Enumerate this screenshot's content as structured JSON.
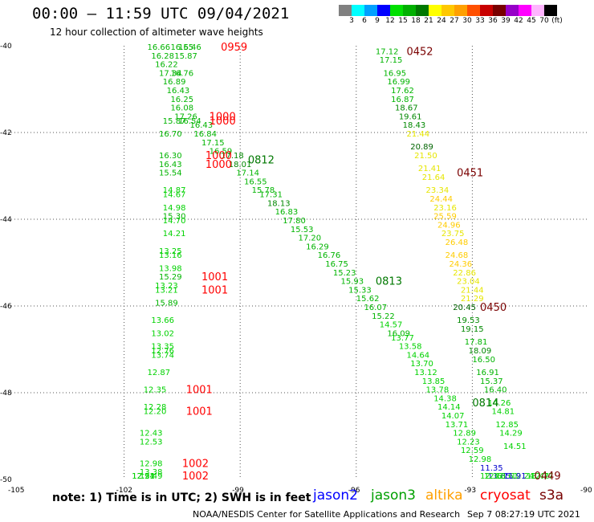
{
  "header": {
    "title": "00:00 – 11:59 UTC 09/04/2021",
    "subtitle": "12 hour collection of altimeter wave heights"
  },
  "legend": {
    "colors": [
      "#808080",
      "#00ffff",
      "#00a0ff",
      "#0000ff",
      "#00e000",
      "#00b000",
      "#007800",
      "#ffff00",
      "#ffc800",
      "#ffa000",
      "#ff5000",
      "#c80000",
      "#780000",
      "#9600c8",
      "#ff00ff",
      "#ffb4ff",
      "#000000"
    ],
    "ticks": [
      "3",
      "6",
      "9",
      "12",
      "15",
      "18",
      "21",
      "24",
      "27",
      "30",
      "33",
      "36",
      "39",
      "42",
      "45",
      "70",
      "(ft)"
    ]
  },
  "map": {
    "lon_range": [
      -105,
      -90
    ],
    "lat_range": [
      -50,
      -40
    ],
    "lon_ticks": [
      "-105",
      "-102",
      "-99",
      "-96",
      "-93",
      "-90"
    ],
    "lat_ticks": [
      "-40",
      "-42",
      "-44",
      "-46",
      "-48",
      "-50"
    ],
    "grid": "dotted"
  },
  "colors": {
    "c12": "#00d200",
    "c15": "#00b400",
    "c18": "#008800",
    "c21": "#006400",
    "c24": "#e6e600",
    "c27": "#ffcc00",
    "c_blue": "#0000cc",
    "time_red": "#ff0000",
    "time_dark": "#7a0000",
    "time_green": "#007800"
  },
  "chart_data": {
    "type": "scatter",
    "x_unit": "longitude",
    "y_unit": "latitude",
    "points": [
      {
        "lon": -101.4,
        "lat": -40.0,
        "v": "16.66",
        "c": "c15"
      },
      {
        "lon": -100.8,
        "lat": -40.0,
        "v": "16.55",
        "c": "c15"
      },
      {
        "lon": -100.6,
        "lat": -40.0,
        "v": "16.46",
        "c": "c15"
      },
      {
        "lon": -101.3,
        "lat": -40.2,
        "v": "16.28",
        "c": "c15"
      },
      {
        "lon": -100.7,
        "lat": -40.2,
        "v": "15.87",
        "c": "c15"
      },
      {
        "lon": -101.2,
        "lat": -40.4,
        "v": "16.22",
        "c": "c15"
      },
      {
        "lon": -101.1,
        "lat": -40.6,
        "v": "17.34",
        "c": "c15"
      },
      {
        "lon": -100.8,
        "lat": -40.6,
        "v": "16.76",
        "c": "c15"
      },
      {
        "lon": -101.0,
        "lat": -40.8,
        "v": "16.89",
        "c": "c15"
      },
      {
        "lon": -100.9,
        "lat": -41.0,
        "v": "16.43",
        "c": "c15"
      },
      {
        "lon": -100.8,
        "lat": -41.2,
        "v": "16.25",
        "c": "c15"
      },
      {
        "lon": -100.8,
        "lat": -41.4,
        "v": "16.08",
        "c": "c15"
      },
      {
        "lon": -100.7,
        "lat": -41.6,
        "v": "17.26",
        "c": "c15"
      },
      {
        "lon": -101.0,
        "lat": -41.7,
        "v": "15.87",
        "c": "c15"
      },
      {
        "lon": -100.6,
        "lat": -41.7,
        "v": "16.54",
        "c": "c15"
      },
      {
        "lon": -100.3,
        "lat": -41.8,
        "v": "16.43",
        "c": "c15"
      },
      {
        "lon": -101.1,
        "lat": -42.0,
        "v": "16.70",
        "c": "c15"
      },
      {
        "lon": -100.2,
        "lat": -42.0,
        "v": "16.84",
        "c": "c15"
      },
      {
        "lon": -100.0,
        "lat": -42.2,
        "v": "17.15",
        "c": "c15"
      },
      {
        "lon": -99.8,
        "lat": -42.4,
        "v": "16.59",
        "c": "c15"
      },
      {
        "lon": -101.1,
        "lat": -42.5,
        "v": "16.30",
        "c": "c15"
      },
      {
        "lon": -99.5,
        "lat": -42.5,
        "v": "17.18",
        "c": "c18"
      },
      {
        "lon": -101.1,
        "lat": -42.7,
        "v": "16.43",
        "c": "c15"
      },
      {
        "lon": -99.3,
        "lat": -42.7,
        "v": "18.01",
        "c": "c18"
      },
      {
        "lon": -101.1,
        "lat": -42.9,
        "v": "15.54",
        "c": "c15"
      },
      {
        "lon": -99.1,
        "lat": -42.9,
        "v": "17.14",
        "c": "c15"
      },
      {
        "lon": -98.9,
        "lat": -43.1,
        "v": "16.55",
        "c": "c15"
      },
      {
        "lon": -98.7,
        "lat": -43.3,
        "v": "15.78",
        "c": "c15"
      },
      {
        "lon": -98.5,
        "lat": -43.4,
        "v": "17.31",
        "c": "c15"
      },
      {
        "lon": -98.3,
        "lat": -43.6,
        "v": "18.13",
        "c": "c18"
      },
      {
        "lon": -98.1,
        "lat": -43.8,
        "v": "16.83",
        "c": "c15"
      },
      {
        "lon": -97.9,
        "lat": -44.0,
        "v": "17.80",
        "c": "c15"
      },
      {
        "lon": -97.7,
        "lat": -44.2,
        "v": "15.53",
        "c": "c15"
      },
      {
        "lon": -97.5,
        "lat": -44.4,
        "v": "17.20",
        "c": "c15"
      },
      {
        "lon": -97.3,
        "lat": -44.6,
        "v": "16.29",
        "c": "c15"
      },
      {
        "lon": -97.0,
        "lat": -44.8,
        "v": "16.76",
        "c": "c15"
      },
      {
        "lon": -96.8,
        "lat": -45.0,
        "v": "16.75",
        "c": "c15"
      },
      {
        "lon": -96.6,
        "lat": -45.2,
        "v": "15.23",
        "c": "c15"
      },
      {
        "lon": -96.4,
        "lat": -45.4,
        "v": "15.93",
        "c": "c15"
      },
      {
        "lon": -96.2,
        "lat": -45.6,
        "v": "15.33",
        "c": "c15"
      },
      {
        "lon": -96.0,
        "lat": -45.8,
        "v": "15.62",
        "c": "c15"
      },
      {
        "lon": -95.8,
        "lat": -46.0,
        "v": "16.07",
        "c": "c15"
      },
      {
        "lon": -95.6,
        "lat": -46.2,
        "v": "15.22",
        "c": "c15"
      },
      {
        "lon": -95.4,
        "lat": -46.4,
        "v": "14.57",
        "c": "c12"
      },
      {
        "lon": -95.2,
        "lat": -46.6,
        "v": "16.09",
        "c": "c15"
      },
      {
        "lon": -95.1,
        "lat": -46.7,
        "v": "13.77",
        "c": "c12"
      },
      {
        "lon": -94.9,
        "lat": -46.9,
        "v": "13.58",
        "c": "c12"
      },
      {
        "lon": -94.7,
        "lat": -47.1,
        "v": "14.64",
        "c": "c12"
      },
      {
        "lon": -94.6,
        "lat": -47.3,
        "v": "13.70",
        "c": "c12"
      },
      {
        "lon": -94.5,
        "lat": -47.5,
        "v": "13.12",
        "c": "c12"
      },
      {
        "lon": -94.3,
        "lat": -47.7,
        "v": "13.85",
        "c": "c12"
      },
      {
        "lon": -94.2,
        "lat": -47.9,
        "v": "13.78",
        "c": "c12"
      },
      {
        "lon": -94.0,
        "lat": -48.1,
        "v": "14.38",
        "c": "c12"
      },
      {
        "lon": -93.9,
        "lat": -48.3,
        "v": "14.14",
        "c": "c12"
      },
      {
        "lon": -93.8,
        "lat": -48.5,
        "v": "14.07",
        "c": "c12"
      },
      {
        "lon": -93.7,
        "lat": -48.7,
        "v": "13.71",
        "c": "c12"
      },
      {
        "lon": -93.5,
        "lat": -48.9,
        "v": "12.89",
        "c": "c12"
      },
      {
        "lon": -93.4,
        "lat": -49.1,
        "v": "12.23",
        "c": "c12"
      },
      {
        "lon": -93.3,
        "lat": -49.3,
        "v": "12.59",
        "c": "c12"
      },
      {
        "lon": -93.1,
        "lat": -49.5,
        "v": "12.98",
        "c": "c12"
      },
      {
        "lon": -92.8,
        "lat": -49.7,
        "v": "11.35",
        "c": "c_blue"
      },
      {
        "lon": -92.6,
        "lat": -49.9,
        "v": "11.65",
        "c": "c_blue"
      },
      {
        "lon": -92.8,
        "lat": -50.1,
        "v": "12.33",
        "c": "c12"
      },
      {
        "lon": -92.7,
        "lat": -50.3,
        "v": "12.61",
        "c": "c12"
      },
      {
        "lon": -92.4,
        "lat": -50.5,
        "v": "13.61",
        "c": "c12"
      },
      {
        "lon": -92.0,
        "lat": -50.5,
        "v": "12.24",
        "c": "c12"
      },
      {
        "lon": -91.6,
        "lat": -50.4,
        "v": "13.42",
        "c": "c12"
      },
      {
        "lon": -92.2,
        "lat": -50.7,
        "v": "11.91",
        "c": "c_blue"
      },
      {
        "lon": -91.5,
        "lat": -50.7,
        "v": "12.77",
        "c": "c12"
      },
      {
        "lon": -95.5,
        "lat": -40.1,
        "v": "17.12",
        "c": "c15"
      },
      {
        "lon": -95.4,
        "lat": -40.3,
        "v": "17.15",
        "c": "c15"
      },
      {
        "lon": -95.3,
        "lat": -40.6,
        "v": "16.95",
        "c": "c15"
      },
      {
        "lon": -95.2,
        "lat": -40.8,
        "v": "16.99",
        "c": "c15"
      },
      {
        "lon": -95.1,
        "lat": -41.0,
        "v": "17.62",
        "c": "c15"
      },
      {
        "lon": -95.1,
        "lat": -41.2,
        "v": "16.87",
        "c": "c15"
      },
      {
        "lon": -95.0,
        "lat": -41.4,
        "v": "18.67",
        "c": "c18"
      },
      {
        "lon": -94.9,
        "lat": -41.6,
        "v": "19.61",
        "c": "c18"
      },
      {
        "lon": -94.8,
        "lat": -41.8,
        "v": "18.43",
        "c": "c18"
      },
      {
        "lon": -94.7,
        "lat": -42.0,
        "v": "21.44",
        "c": "c24"
      },
      {
        "lon": -94.6,
        "lat": -42.3,
        "v": "20.89",
        "c": "c21"
      },
      {
        "lon": -94.5,
        "lat": -42.5,
        "v": "21.50",
        "c": "c24"
      },
      {
        "lon": -94.4,
        "lat": -42.8,
        "v": "21.41",
        "c": "c24"
      },
      {
        "lon": -94.3,
        "lat": -43.0,
        "v": "21.64",
        "c": "c24"
      },
      {
        "lon": -94.2,
        "lat": -43.3,
        "v": "23.34",
        "c": "c24"
      },
      {
        "lon": -94.1,
        "lat": -43.5,
        "v": "24.44",
        "c": "c27"
      },
      {
        "lon": -94.0,
        "lat": -43.7,
        "v": "23.16",
        "c": "c24"
      },
      {
        "lon": -94.0,
        "lat": -43.9,
        "v": "25.59",
        "c": "c27"
      },
      {
        "lon": -93.9,
        "lat": -44.1,
        "v": "24.96",
        "c": "c27"
      },
      {
        "lon": -93.8,
        "lat": -44.3,
        "v": "23.75",
        "c": "c24"
      },
      {
        "lon": -93.7,
        "lat": -44.5,
        "v": "26.48",
        "c": "c27"
      },
      {
        "lon": -93.7,
        "lat": -44.8,
        "v": "24.68",
        "c": "c27"
      },
      {
        "lon": -93.6,
        "lat": -45.0,
        "v": "24.36",
        "c": "c27"
      },
      {
        "lon": -93.5,
        "lat": -45.2,
        "v": "22.86",
        "c": "c24"
      },
      {
        "lon": -93.4,
        "lat": -45.4,
        "v": "23.04",
        "c": "c24"
      },
      {
        "lon": -93.3,
        "lat": -45.6,
        "v": "21.44",
        "c": "c24"
      },
      {
        "lon": -93.3,
        "lat": -45.8,
        "v": "21.29",
        "c": "c24"
      },
      {
        "lon": -93.5,
        "lat": -46.0,
        "v": "20.45",
        "c": "c21"
      },
      {
        "lon": -93.4,
        "lat": -46.3,
        "v": "19.53",
        "c": "c18"
      },
      {
        "lon": -93.3,
        "lat": -46.5,
        "v": "19.15",
        "c": "c18"
      },
      {
        "lon": -93.2,
        "lat": -46.8,
        "v": "17.81",
        "c": "c15"
      },
      {
        "lon": -93.1,
        "lat": -47.0,
        "v": "18.09",
        "c": "c18"
      },
      {
        "lon": -93.0,
        "lat": -47.2,
        "v": "16.50",
        "c": "c15"
      },
      {
        "lon": -92.9,
        "lat": -47.5,
        "v": "16.91",
        "c": "c15"
      },
      {
        "lon": -92.8,
        "lat": -47.7,
        "v": "15.37",
        "c": "c15"
      },
      {
        "lon": -92.7,
        "lat": -47.9,
        "v": "16.40",
        "c": "c15"
      },
      {
        "lon": -92.6,
        "lat": -48.2,
        "v": "14.26",
        "c": "c12"
      },
      {
        "lon": -92.5,
        "lat": -48.4,
        "v": "14.81",
        "c": "c12"
      },
      {
        "lon": -92.4,
        "lat": -48.7,
        "v": "12.85",
        "c": "c12"
      },
      {
        "lon": -92.3,
        "lat": -48.9,
        "v": "14.29",
        "c": "c12"
      },
      {
        "lon": -92.2,
        "lat": -49.2,
        "v": "14.51",
        "c": "c12"
      },
      {
        "lon": -101.0,
        "lat": -43.3,
        "v": "14.87",
        "c": "c12"
      },
      {
        "lon": -101.0,
        "lat": -43.4,
        "v": "14.67",
        "c": "c12"
      },
      {
        "lon": -101.0,
        "lat": -43.7,
        "v": "14.98",
        "c": "c12"
      },
      {
        "lon": -101.0,
        "lat": -43.9,
        "v": "15.30",
        "c": "c15"
      },
      {
        "lon": -101.0,
        "lat": -44.0,
        "v": "14.70",
        "c": "c12"
      },
      {
        "lon": -101.0,
        "lat": -44.3,
        "v": "14.21",
        "c": "c12"
      },
      {
        "lon": -101.1,
        "lat": -44.7,
        "v": "13.25",
        "c": "c12"
      },
      {
        "lon": -101.1,
        "lat": -44.8,
        "v": "13.16",
        "c": "c12"
      },
      {
        "lon": -101.1,
        "lat": -45.1,
        "v": "13.98",
        "c": "c12"
      },
      {
        "lon": -101.1,
        "lat": -45.3,
        "v": "15.29",
        "c": "c15"
      },
      {
        "lon": -101.2,
        "lat": -45.5,
        "v": "13.23",
        "c": "c12"
      },
      {
        "lon": -101.2,
        "lat": -45.6,
        "v": "13.21",
        "c": "c12"
      },
      {
        "lon": -101.2,
        "lat": -45.9,
        "v": "15.89",
        "c": "c15"
      },
      {
        "lon": -101.3,
        "lat": -46.3,
        "v": "13.66",
        "c": "c12"
      },
      {
        "lon": -101.3,
        "lat": -46.6,
        "v": "13.02",
        "c": "c12"
      },
      {
        "lon": -101.3,
        "lat": -46.9,
        "v": "13.35",
        "c": "c12"
      },
      {
        "lon": -101.3,
        "lat": -47.0,
        "v": "12.76",
        "c": "c12"
      },
      {
        "lon": -101.3,
        "lat": -47.1,
        "v": "13.74",
        "c": "c12"
      },
      {
        "lon": -101.4,
        "lat": -47.5,
        "v": "12.87",
        "c": "c12"
      },
      {
        "lon": -101.5,
        "lat": -47.9,
        "v": "12.35",
        "c": "c12"
      },
      {
        "lon": -101.5,
        "lat": -48.3,
        "v": "12.28",
        "c": "c12"
      },
      {
        "lon": -101.5,
        "lat": -48.4,
        "v": "12.20",
        "c": "c12"
      },
      {
        "lon": -101.6,
        "lat": -48.9,
        "v": "12.43",
        "c": "c12"
      },
      {
        "lon": -101.6,
        "lat": -49.1,
        "v": "12.53",
        "c": "c12"
      },
      {
        "lon": -101.6,
        "lat": -49.6,
        "v": "12.98",
        "c": "c12"
      },
      {
        "lon": -101.6,
        "lat": -49.8,
        "v": "13.38",
        "c": "c12"
      },
      {
        "lon": -101.6,
        "lat": -49.9,
        "v": "13.49",
        "c": "c12"
      },
      {
        "lon": -101.8,
        "lat": -50.3,
        "v": "12.94",
        "c": "c12"
      },
      {
        "lon": -101.8,
        "lat": -50.5,
        "v": "12.21",
        "c": "c12"
      }
    ],
    "time_labels": [
      {
        "lon": -99.5,
        "lat": -40.0,
        "v": "0959",
        "c": "time_red"
      },
      {
        "lon": -99.8,
        "lat": -41.6,
        "v": "1000",
        "c": "time_red"
      },
      {
        "lon": -99.8,
        "lat": -41.7,
        "v": "1000",
        "c": "time_red"
      },
      {
        "lon": -99.9,
        "lat": -42.5,
        "v": "1000",
        "c": "time_red"
      },
      {
        "lon": -99.9,
        "lat": -42.7,
        "v": "1000",
        "c": "time_red"
      },
      {
        "lon": -98.8,
        "lat": -42.6,
        "v": "0812",
        "c": "time_green"
      },
      {
        "lon": -100.0,
        "lat": -45.3,
        "v": "1001",
        "c": "time_red"
      },
      {
        "lon": -100.0,
        "lat": -45.6,
        "v": "1001",
        "c": "time_red"
      },
      {
        "lon": -100.4,
        "lat": -47.9,
        "v": "1001",
        "c": "time_red"
      },
      {
        "lon": -100.4,
        "lat": -48.4,
        "v": "1001",
        "c": "time_red"
      },
      {
        "lon": -100.5,
        "lat": -49.6,
        "v": "1002",
        "c": "time_red"
      },
      {
        "lon": -100.5,
        "lat": -49.9,
        "v": "1002",
        "c": "time_red"
      },
      {
        "lon": -94.7,
        "lat": -40.1,
        "v": "0452",
        "c": "time_dark"
      },
      {
        "lon": -93.4,
        "lat": -42.9,
        "v": "0451",
        "c": "time_dark"
      },
      {
        "lon": -92.8,
        "lat": -46.0,
        "v": "0450",
        "c": "time_dark"
      },
      {
        "lon": -91.4,
        "lat": -50.5,
        "v": "0449",
        "c": "time_dark"
      },
      {
        "lon": -95.5,
        "lat": -45.4,
        "v": "0813",
        "c": "time_green"
      },
      {
        "lon": -93.0,
        "lat": -48.2,
        "v": "0814",
        "c": "time_green"
      }
    ]
  },
  "footer": {
    "note": "note: 1) Time is in UTC; 2) SWH is in feet",
    "satellites": [
      {
        "name": "jason2",
        "color": "#0000ff",
        "left": 390
      },
      {
        "name": "jason3",
        "color": "#00a000",
        "left": 462
      },
      {
        "name": "altika",
        "color": "#ffa000",
        "left": 530
      },
      {
        "name": "cryosat",
        "color": "#ff0000",
        "left": 598
      },
      {
        "name": "s3a",
        "color": "#780000",
        "left": 672
      }
    ],
    "credit": "NOAA/NESDIS Center for Satellite Applications and Research",
    "timestamp": "Sep  7 08:27:19 UTC 2021"
  }
}
